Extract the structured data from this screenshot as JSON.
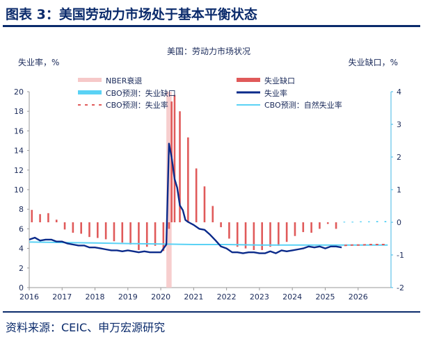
{
  "figure_title": "图表 3：美国劳动力市场处于基本平衡状态",
  "source": "资料来源：CEIC、申万宏源研究",
  "chart_data": {
    "type": "bar+line",
    "title": "美国：劳动力市场状况",
    "ylabel_left": "失业率，%",
    "ylabel_right": "失业缺口，%",
    "ylim_left": [
      0,
      20
    ],
    "ylim_right": [
      -2,
      4
    ],
    "yticks_left": [
      "0",
      "2",
      "4",
      "6",
      "8",
      "10",
      "12",
      "14",
      "16",
      "18",
      "20"
    ],
    "yticks_right": [
      "-2",
      "-1",
      "0",
      "1",
      "2",
      "3",
      "4"
    ],
    "xlim": [
      2016,
      2027
    ],
    "xticks": [
      "2016",
      "2017",
      "2018",
      "2019",
      "2020",
      "2021",
      "2022",
      "2023",
      "2024",
      "2025",
      "2026"
    ],
    "legend": [
      "NBER衰退",
      "失业缺口",
      "CBO预测：失业缺口",
      "失业率",
      "CBO预测：失业率",
      "CBO预测：自然失业率"
    ],
    "colors": {
      "recession": "#f6c9c9",
      "gap": "#e05a5a",
      "cbo_gap": "#5ad2f5",
      "unemployment": "#0a2a8a",
      "cbo_unemployment": "#e05a5a",
      "natural_rate": "#5ad2f5",
      "axis_right": "#3fb7e6",
      "text": "#1a2a5a"
    },
    "recession_period": [
      2020.17,
      2020.33
    ],
    "unemployment_gap": {
      "axis": "right",
      "x": [
        2016.08,
        2016.33,
        2016.58,
        2016.83,
        2017.08,
        2017.33,
        2017.58,
        2017.83,
        2018.08,
        2018.33,
        2018.58,
        2018.83,
        2019.08,
        2019.33,
        2019.58,
        2019.83,
        2020.08,
        2020.25,
        2020.33,
        2020.42,
        2020.58,
        2020.83,
        2021.08,
        2021.33,
        2021.58,
        2021.83,
        2022.08,
        2022.33,
        2022.58,
        2022.83,
        2023.08,
        2023.33,
        2023.58,
        2023.83,
        2024.08,
        2024.33,
        2024.58,
        2024.83,
        2025.08,
        2025.33
      ],
      "values": [
        0.38,
        0.25,
        0.28,
        0.08,
        -0.22,
        -0.32,
        -0.35,
        -0.45,
        -0.48,
        -0.52,
        -0.58,
        -0.62,
        -0.68,
        -0.85,
        -0.75,
        -0.72,
        -0.88,
        -0.2,
        3.7,
        3.9,
        3.4,
        2.6,
        1.65,
        1.1,
        0.5,
        -0.15,
        -0.5,
        -0.75,
        -0.8,
        -0.85,
        -0.85,
        -0.75,
        -0.72,
        -0.6,
        -0.42,
        -0.3,
        -0.32,
        -0.2,
        -0.05,
        -0.2
      ]
    },
    "cbo_gap": {
      "axis": "right",
      "x": [
        2025.58,
        2025.83,
        2026.08,
        2026.33,
        2026.58,
        2026.83
      ],
      "values": [
        0.02,
        0.02,
        0.03,
        0.03,
        0.04,
        0.04
      ]
    },
    "unemployment_rate": {
      "axis": "left",
      "x": [
        2016.0,
        2016.17,
        2016.33,
        2016.5,
        2016.67,
        2016.83,
        2017.0,
        2017.17,
        2017.33,
        2017.5,
        2017.67,
        2017.83,
        2018.0,
        2018.17,
        2018.33,
        2018.5,
        2018.67,
        2018.83,
        2019.0,
        2019.17,
        2019.33,
        2019.5,
        2019.67,
        2019.83,
        2020.0,
        2020.17,
        2020.25,
        2020.33,
        2020.42,
        2020.5,
        2020.58,
        2020.67,
        2020.75,
        2020.83,
        2021.0,
        2021.17,
        2021.33,
        2021.5,
        2021.67,
        2021.83,
        2022.0,
        2022.17,
        2022.33,
        2022.5,
        2022.67,
        2022.83,
        2023.0,
        2023.17,
        2023.33,
        2023.5,
        2023.67,
        2023.83,
        2024.0,
        2024.17,
        2024.33,
        2024.5,
        2024.67,
        2024.83,
        2025.0,
        2025.17,
        2025.33,
        2025.5
      ],
      "values": [
        4.9,
        5.1,
        4.8,
        4.9,
        4.9,
        4.7,
        4.7,
        4.5,
        4.4,
        4.3,
        4.3,
        4.1,
        4.1,
        4.0,
        3.9,
        3.8,
        3.8,
        3.7,
        3.8,
        3.7,
        3.6,
        3.7,
        3.6,
        3.6,
        3.6,
        4.4,
        14.7,
        13.3,
        11.1,
        10.2,
        8.4,
        7.9,
        6.9,
        6.7,
        6.4,
        6.0,
        5.9,
        5.4,
        4.8,
        4.2,
        4.0,
        3.6,
        3.6,
        3.5,
        3.6,
        3.6,
        3.5,
        3.5,
        3.7,
        3.5,
        3.8,
        3.7,
        3.8,
        3.9,
        4.0,
        4.2,
        4.1,
        4.2,
        4.0,
        4.2,
        4.2,
        4.1
      ]
    },
    "cbo_unemployment": {
      "axis": "left",
      "x": [
        2025.58,
        2025.83,
        2026.08,
        2026.33,
        2026.58,
        2026.83
      ],
      "values": [
        4.3,
        4.35,
        4.35,
        4.4,
        4.4,
        4.4
      ]
    },
    "natural_rate": {
      "axis": "left",
      "x": [
        2016.0,
        2017.0,
        2018.0,
        2019.0,
        2020.0,
        2021.0,
        2022.0,
        2023.0,
        2024.0,
        2025.0,
        2026.0,
        2026.9
      ],
      "values": [
        4.65,
        4.6,
        4.55,
        4.5,
        4.45,
        4.4,
        4.4,
        4.35,
        4.35,
        4.35,
        4.35,
        4.35
      ]
    }
  }
}
